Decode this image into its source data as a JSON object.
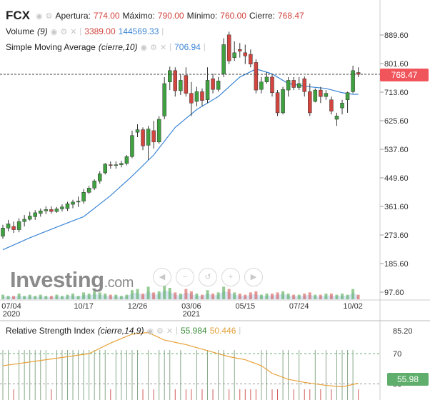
{
  "header": {
    "symbol": "FCX",
    "open_label": "Apertura:",
    "open_value": "774.00",
    "high_label": "Máximo:",
    "high_value": "790.00",
    "low_label": "Mínimo:",
    "low_value": "760.00",
    "close_label": "Cierre:",
    "close_value": "768.47"
  },
  "volume_legend": {
    "label": "Volume",
    "param": "(9)",
    "value1": "3389.00",
    "value2": "144569.33"
  },
  "sma_legend": {
    "label": "Simple Moving Average",
    "param": "(cierre,10)",
    "value": "706.94"
  },
  "rsi_legend": {
    "label": "Relative Strength Index",
    "param": "(cierre,14,9)",
    "value1": "55.984",
    "value2": "50.446"
  },
  "price_tag": "768.47",
  "rsi_tag": "55.98",
  "logo": {
    "main": "Investing",
    "suffix": ".com"
  },
  "colors": {
    "up": "#3fa13f",
    "down": "#d2463f",
    "sma": "#3d86d6",
    "rsi_signal": "#e8a23a",
    "volume_area": "#c7dcf2"
  },
  "icons": [
    "eye-icon",
    "settings-icon",
    "close-icon"
  ],
  "nav_icons": [
    "scroll-left-icon",
    "zoom-out-icon",
    "reset-icon",
    "zoom-in-icon",
    "scroll-right-icon"
  ],
  "chart_data": [
    {
      "type": "candlestick",
      "title": "FCX",
      "y_ticks": [
        "889.60",
        "801.60",
        "713.60",
        "625.60",
        "537.60",
        "449.60",
        "361.60",
        "273.60",
        "185.60",
        "97.60"
      ],
      "ylim": [
        97.6,
        889.6
      ],
      "x_ticks": [
        {
          "label": "07/04",
          "sub": "2020",
          "i": 0
        },
        {
          "label": "10/17",
          "sub": "",
          "i": 15
        },
        {
          "label": "12/26",
          "sub": "",
          "i": 25
        },
        {
          "label": "03/06",
          "sub": "2021",
          "i": 35
        },
        {
          "label": "05/15",
          "sub": "",
          "i": 45
        },
        {
          "label": "07/24",
          "sub": "",
          "i": 55
        },
        {
          "label": "10/02",
          "sub": "",
          "i": 65
        }
      ],
      "candles": [
        {
          "o": 270,
          "h": 305,
          "l": 262,
          "c": 295
        },
        {
          "o": 295,
          "h": 320,
          "l": 285,
          "c": 308
        },
        {
          "o": 300,
          "h": 315,
          "l": 280,
          "c": 290
        },
        {
          "o": 290,
          "h": 325,
          "l": 282,
          "c": 315
        },
        {
          "o": 315,
          "h": 335,
          "l": 300,
          "c": 322
        },
        {
          "o": 322,
          "h": 345,
          "l": 318,
          "c": 332
        },
        {
          "o": 330,
          "h": 350,
          "l": 320,
          "c": 342
        },
        {
          "o": 340,
          "h": 355,
          "l": 330,
          "c": 348
        },
        {
          "o": 348,
          "h": 362,
          "l": 338,
          "c": 352
        },
        {
          "o": 352,
          "h": 362,
          "l": 340,
          "c": 346
        },
        {
          "o": 346,
          "h": 360,
          "l": 342,
          "c": 354
        },
        {
          "o": 354,
          "h": 368,
          "l": 346,
          "c": 360
        },
        {
          "o": 355,
          "h": 376,
          "l": 348,
          "c": 370
        },
        {
          "o": 368,
          "h": 382,
          "l": 356,
          "c": 375
        },
        {
          "o": 375,
          "h": 392,
          "l": 360,
          "c": 378
        },
        {
          "o": 378,
          "h": 415,
          "l": 370,
          "c": 405
        },
        {
          "o": 405,
          "h": 425,
          "l": 400,
          "c": 418
        },
        {
          "o": 418,
          "h": 445,
          "l": 412,
          "c": 440
        },
        {
          "o": 440,
          "h": 470,
          "l": 432,
          "c": 462
        },
        {
          "o": 465,
          "h": 495,
          "l": 460,
          "c": 492
        },
        {
          "o": 490,
          "h": 500,
          "l": 478,
          "c": 488
        },
        {
          "o": 488,
          "h": 500,
          "l": 478,
          "c": 490
        },
        {
          "o": 490,
          "h": 502,
          "l": 482,
          "c": 494
        },
        {
          "o": 494,
          "h": 520,
          "l": 488,
          "c": 515
        },
        {
          "o": 515,
          "h": 595,
          "l": 510,
          "c": 580
        },
        {
          "o": 590,
          "h": 615,
          "l": 575,
          "c": 598
        },
        {
          "o": 598,
          "h": 605,
          "l": 535,
          "c": 548
        },
        {
          "o": 550,
          "h": 610,
          "l": 505,
          "c": 600
        },
        {
          "o": 595,
          "h": 625,
          "l": 540,
          "c": 560
        },
        {
          "o": 560,
          "h": 640,
          "l": 555,
          "c": 630
        },
        {
          "o": 640,
          "h": 760,
          "l": 630,
          "c": 740
        },
        {
          "o": 745,
          "h": 792,
          "l": 720,
          "c": 780
        },
        {
          "o": 780,
          "h": 790,
          "l": 700,
          "c": 718
        },
        {
          "o": 718,
          "h": 770,
          "l": 705,
          "c": 750
        },
        {
          "o": 765,
          "h": 790,
          "l": 700,
          "c": 710
        },
        {
          "o": 710,
          "h": 745,
          "l": 640,
          "c": 680
        },
        {
          "o": 685,
          "h": 730,
          "l": 670,
          "c": 715
        },
        {
          "o": 715,
          "h": 725,
          "l": 670,
          "c": 688
        },
        {
          "o": 690,
          "h": 790,
          "l": 680,
          "c": 750
        },
        {
          "o": 755,
          "h": 770,
          "l": 710,
          "c": 722
        },
        {
          "o": 722,
          "h": 760,
          "l": 715,
          "c": 748
        },
        {
          "o": 770,
          "h": 880,
          "l": 760,
          "c": 860
        },
        {
          "o": 890,
          "h": 900,
          "l": 800,
          "c": 810
        },
        {
          "o": 820,
          "h": 870,
          "l": 810,
          "c": 835
        },
        {
          "o": 845,
          "h": 865,
          "l": 820,
          "c": 840
        },
        {
          "o": 835,
          "h": 860,
          "l": 800,
          "c": 825
        },
        {
          "o": 830,
          "h": 845,
          "l": 790,
          "c": 800
        },
        {
          "o": 805,
          "h": 815,
          "l": 710,
          "c": 720
        },
        {
          "o": 722,
          "h": 760,
          "l": 710,
          "c": 745
        },
        {
          "o": 745,
          "h": 775,
          "l": 740,
          "c": 760
        },
        {
          "o": 760,
          "h": 770,
          "l": 700,
          "c": 712
        },
        {
          "o": 712,
          "h": 720,
          "l": 640,
          "c": 650
        },
        {
          "o": 650,
          "h": 730,
          "l": 645,
          "c": 722
        },
        {
          "o": 720,
          "h": 760,
          "l": 700,
          "c": 750
        },
        {
          "o": 750,
          "h": 760,
          "l": 720,
          "c": 728
        },
        {
          "o": 728,
          "h": 760,
          "l": 720,
          "c": 740
        },
        {
          "o": 755,
          "h": 762,
          "l": 700,
          "c": 715
        },
        {
          "o": 715,
          "h": 740,
          "l": 640,
          "c": 650
        },
        {
          "o": 685,
          "h": 725,
          "l": 682,
          "c": 720
        },
        {
          "o": 720,
          "h": 730,
          "l": 680,
          "c": 700
        },
        {
          "o": 700,
          "h": 720,
          "l": 690,
          "c": 710
        },
        {
          "o": 690,
          "h": 700,
          "l": 645,
          "c": 655
        },
        {
          "o": 630,
          "h": 650,
          "l": 610,
          "c": 640
        },
        {
          "o": 665,
          "h": 690,
          "l": 645,
          "c": 680
        },
        {
          "o": 690,
          "h": 715,
          "l": 650,
          "c": 712
        },
        {
          "o": 715,
          "h": 795,
          "l": 710,
          "c": 780
        },
        {
          "o": 774,
          "h": 790,
          "l": 760,
          "c": 768.47
        }
      ],
      "sma": [
        {
          "i": 0,
          "v": 228
        },
        {
          "i": 5,
          "v": 265
        },
        {
          "i": 10,
          "v": 298
        },
        {
          "i": 15,
          "v": 330
        },
        {
          "i": 20,
          "v": 395
        },
        {
          "i": 24,
          "v": 455
        },
        {
          "i": 28,
          "v": 520
        },
        {
          "i": 32,
          "v": 605
        },
        {
          "i": 36,
          "v": 660
        },
        {
          "i": 40,
          "v": 700
        },
        {
          "i": 44,
          "v": 760
        },
        {
          "i": 47,
          "v": 785
        },
        {
          "i": 50,
          "v": 770
        },
        {
          "i": 53,
          "v": 740
        },
        {
          "i": 57,
          "v": 730
        },
        {
          "i": 60,
          "v": 725
        },
        {
          "i": 63,
          "v": 712
        },
        {
          "i": 65,
          "v": 706.94
        },
        {
          "i": 66,
          "v": 706.94
        }
      ],
      "current_price": 768.47,
      "volume": [
        4,
        3,
        3,
        5,
        3,
        4,
        3,
        4,
        3,
        3,
        4,
        3,
        4,
        5,
        3,
        6,
        5,
        7,
        6,
        5,
        4,
        4,
        3,
        4,
        8,
        9,
        5,
        11,
        6,
        7,
        12,
        10,
        6,
        5,
        9,
        7,
        5,
        4,
        8,
        5,
        6,
        11,
        9,
        6,
        5,
        4,
        6,
        7,
        4,
        5,
        5,
        6,
        7,
        5,
        4,
        4,
        5,
        6,
        4,
        4,
        5,
        5,
        4,
        5,
        4,
        9,
        4
      ]
    },
    {
      "type": "line",
      "title": "Relative Strength Index",
      "y_ticks": [
        "85.20",
        "70",
        "50"
      ],
      "ylim": [
        45,
        85.2
      ],
      "levels": [
        70,
        50
      ],
      "rsi": [
        {
          "i": 0,
          "v": 62
        },
        {
          "i": 8,
          "v": 66
        },
        {
          "i": 16,
          "v": 70
        },
        {
          "i": 20,
          "v": 77
        },
        {
          "i": 24,
          "v": 83
        },
        {
          "i": 27,
          "v": 84
        },
        {
          "i": 30,
          "v": 79
        },
        {
          "i": 34,
          "v": 76
        },
        {
          "i": 38,
          "v": 72
        },
        {
          "i": 42,
          "v": 68
        },
        {
          "i": 45,
          "v": 66
        },
        {
          "i": 48,
          "v": 62
        },
        {
          "i": 50,
          "v": 57
        },
        {
          "i": 53,
          "v": 53
        },
        {
          "i": 56,
          "v": 51
        },
        {
          "i": 60,
          "v": 49
        },
        {
          "i": 63,
          "v": 48
        },
        {
          "i": 66,
          "v": 50.446
        }
      ]
    }
  ]
}
